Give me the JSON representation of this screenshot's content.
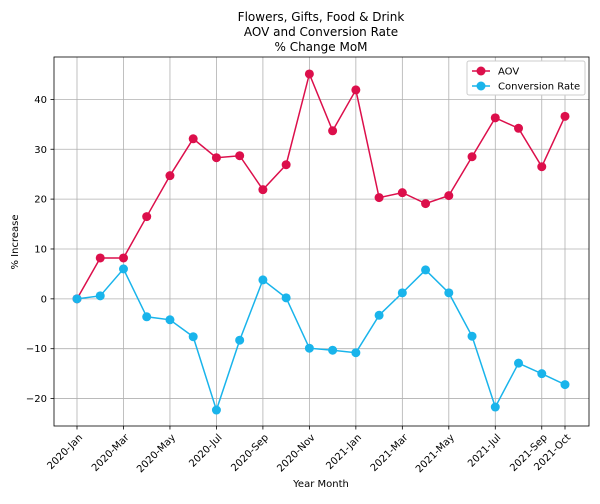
{
  "chart_data": {
    "type": "line",
    "title_lines": [
      "Flowers, Gifts, Food & Drink",
      "AOV and Conversion Rate",
      "% Change MoM"
    ],
    "xlabel": "Year Month",
    "ylabel": "% Increase",
    "ylim": [
      -25.5,
      48.5
    ],
    "y_ticks": [
      -20,
      -10,
      0,
      10,
      20,
      30,
      40
    ],
    "x": [
      "2020-Jan",
      "2020-Feb",
      "2020-Mar",
      "2020-Apr",
      "2020-May",
      "2020-Jun",
      "2020-Jul",
      "2020-Aug",
      "2020-Sep",
      "2020-Oct",
      "2020-Nov",
      "2020-Dec",
      "2021-Jan",
      "2021-Feb",
      "2021-Mar",
      "2021-Apr",
      "2021-May",
      "2021-Jun",
      "2021-Jul",
      "2021-Aug",
      "2021-Sep",
      "2021-Oct"
    ],
    "x_tick_labels": [
      "2020-Jan",
      "2020-Mar",
      "2020-May",
      "2020-Jul",
      "2020-Sep",
      "2020-Nov",
      "2021-Jan",
      "2021-Mar",
      "2021-May",
      "2021-Jul",
      "2021-Sep",
      "2021-Oct"
    ],
    "grid": true,
    "legend_position": "top-right",
    "series": [
      {
        "name": "AOV",
        "color": "#dc0f4b",
        "values": [
          0,
          8.2,
          8.2,
          16.5,
          24.7,
          32.1,
          28.3,
          28.7,
          21.9,
          26.9,
          45.1,
          33.7,
          41.9,
          20.3,
          21.3,
          19.1,
          20.7,
          28.5,
          36.3,
          34.2,
          26.5,
          36.6
        ]
      },
      {
        "name": "Conversion Rate",
        "color": "#19b4eb",
        "values": [
          0,
          0.6,
          6.0,
          -3.6,
          -4.2,
          -7.6,
          -22.3,
          -8.3,
          3.8,
          0.2,
          -9.9,
          -10.3,
          -10.8,
          -3.3,
          1.2,
          5.8,
          1.2,
          -7.5,
          -21.7,
          -12.9,
          -15.0,
          -17.2
        ]
      }
    ]
  }
}
